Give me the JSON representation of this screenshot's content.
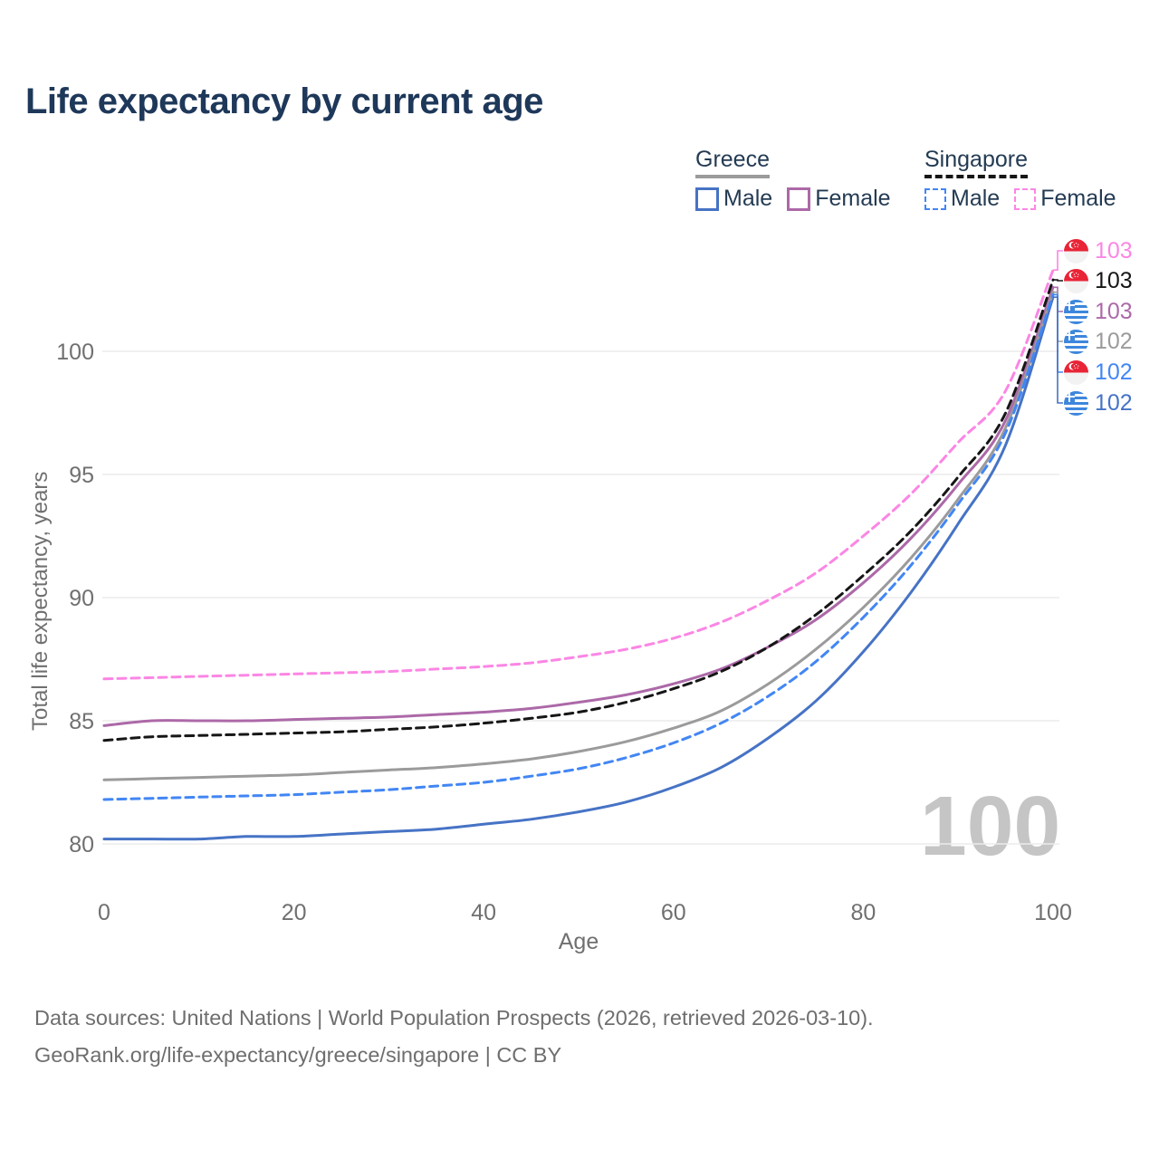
{
  "title": "Life expectancy by current age",
  "legend": {
    "greece": {
      "label": "Greece",
      "items": [
        {
          "label": "Male"
        },
        {
          "label": "Female"
        }
      ]
    },
    "singapore": {
      "label": "Singapore",
      "items": [
        {
          "label": "Male"
        },
        {
          "label": "Female"
        }
      ]
    }
  },
  "watermark": "100",
  "footer": {
    "line1": "Data sources: United Nations | World Population Prospects (2026, retrieved 2026-03-10).",
    "line2": "GeoRank.org/life-expectancy/greece/singapore | CC BY"
  },
  "chart_data": {
    "type": "line",
    "title": "Life expectancy by current age",
    "xlabel": "Age",
    "ylabel": "Total life expectancy, years",
    "xlim": [
      0,
      100
    ],
    "ylim": [
      80,
      103.5
    ],
    "x_ticks": [
      0,
      20,
      40,
      60,
      80,
      100
    ],
    "y_ticks": [
      80,
      85,
      90,
      95,
      100
    ],
    "grid": "horizontal",
    "legend_position": "top-right",
    "x": [
      0,
      5,
      10,
      15,
      20,
      25,
      30,
      35,
      40,
      45,
      50,
      55,
      60,
      65,
      70,
      75,
      80,
      85,
      90,
      95,
      100
    ],
    "series": [
      {
        "name": "Greece Male",
        "country": "Greece",
        "sex": "Male",
        "color": "#4673c5",
        "dash": "solid",
        "values": [
          80.2,
          80.2,
          80.2,
          80.3,
          80.3,
          80.4,
          80.5,
          80.6,
          80.8,
          81.0,
          81.3,
          81.7,
          82.3,
          83.1,
          84.3,
          85.8,
          87.8,
          90.2,
          93.0,
          96.2,
          102.2
        ]
      },
      {
        "name": "Greece Female",
        "country": "Greece",
        "sex": "Female",
        "color": "#ac69a8",
        "dash": "solid",
        "values": [
          84.8,
          85.0,
          85.0,
          85.0,
          85.05,
          85.1,
          85.15,
          85.25,
          85.35,
          85.5,
          85.75,
          86.05,
          86.5,
          87.1,
          88.0,
          89.1,
          90.6,
          92.4,
          94.6,
          97.2,
          102.6
        ]
      },
      {
        "name": "Greece",
        "country": "Greece",
        "sex": "Both",
        "color": "#9b9b9b",
        "dash": "solid",
        "values": [
          82.6,
          82.65,
          82.7,
          82.75,
          82.8,
          82.9,
          83.0,
          83.1,
          83.25,
          83.45,
          83.75,
          84.15,
          84.7,
          85.4,
          86.5,
          87.9,
          89.6,
          91.6,
          94.0,
          96.9,
          102.4
        ]
      },
      {
        "name": "Singapore Male",
        "country": "Singapore",
        "sex": "Male",
        "color": "#4286f4",
        "dash": "dashed",
        "values": [
          81.8,
          81.85,
          81.9,
          81.95,
          82.0,
          82.1,
          82.2,
          82.35,
          82.5,
          82.75,
          83.05,
          83.5,
          84.1,
          84.9,
          86.0,
          87.4,
          89.2,
          91.3,
          93.8,
          96.7,
          102.3
        ]
      },
      {
        "name": "Singapore Female",
        "country": "Singapore",
        "sex": "Female",
        "color": "#fb86e4",
        "dash": "dashed",
        "values": [
          86.7,
          86.75,
          86.8,
          86.85,
          86.9,
          86.95,
          87.0,
          87.1,
          87.2,
          87.35,
          87.6,
          87.9,
          88.35,
          89.0,
          89.9,
          91.0,
          92.5,
          94.2,
          96.3,
          98.4,
          103.3
        ]
      },
      {
        "name": "Singapore",
        "country": "Singapore",
        "sex": "Both",
        "color": "#161616",
        "dash": "dashed",
        "values": [
          84.2,
          84.35,
          84.4,
          84.45,
          84.5,
          84.55,
          84.65,
          84.75,
          84.9,
          85.1,
          85.35,
          85.75,
          86.3,
          87.0,
          88.0,
          89.3,
          90.9,
          92.7,
          94.9,
          97.5,
          102.9
        ]
      }
    ],
    "end_labels": [
      {
        "series": "Singapore Female",
        "flag": "singapore",
        "value": "103",
        "color": "#fb86e4"
      },
      {
        "series": "Singapore",
        "flag": "singapore",
        "value": "103",
        "color": "#161616"
      },
      {
        "series": "Greece Female",
        "flag": "greece",
        "value": "103",
        "color": "#ac69a8"
      },
      {
        "series": "Greece",
        "flag": "greece",
        "value": "102",
        "color": "#9b9b9b"
      },
      {
        "series": "Singapore Male",
        "flag": "singapore",
        "value": "102",
        "color": "#4286f4"
      },
      {
        "series": "Greece Male",
        "flag": "greece",
        "value": "102",
        "color": "#4673c5"
      }
    ]
  }
}
